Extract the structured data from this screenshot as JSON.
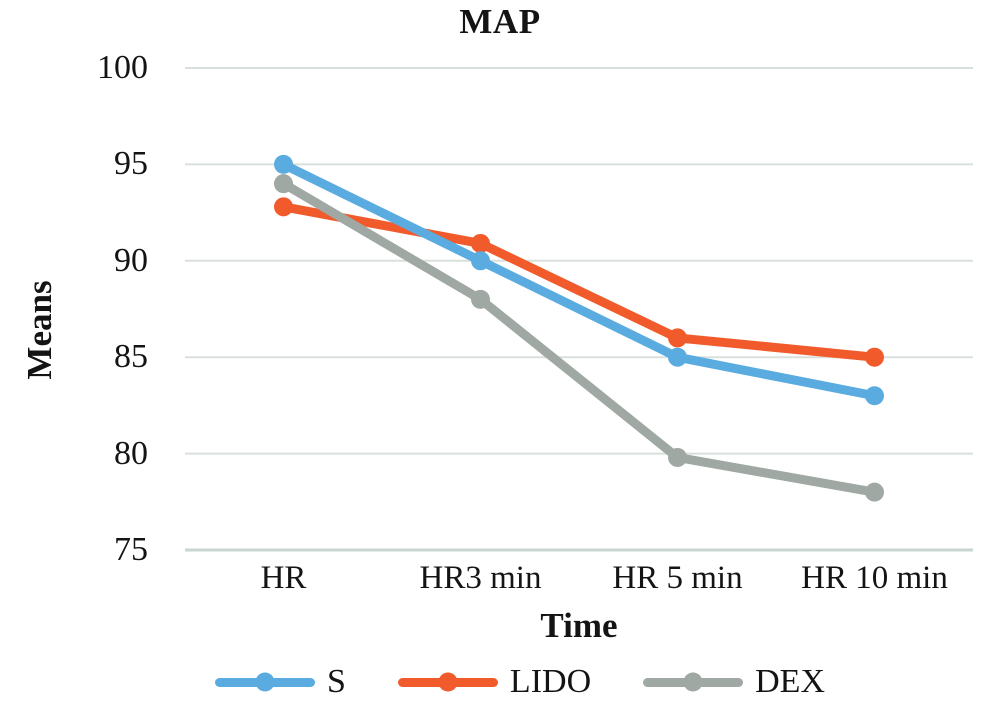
{
  "chart_data": {
    "type": "line",
    "title": "MAP",
    "xlabel": "Time",
    "ylabel": "Means",
    "categories": [
      "HR",
      "HR3 min",
      "HR 5 min",
      "HR 10 min"
    ],
    "yticks": [
      100,
      95,
      90,
      85,
      80,
      75
    ],
    "ylim": [
      75,
      100
    ],
    "grid": true,
    "legend_position": "bottom",
    "series": [
      {
        "name": "S",
        "color": "#5AACE0",
        "z": 3,
        "values": [
          95.0,
          90.0,
          85.0,
          83.0
        ]
      },
      {
        "name": "LIDO",
        "color": "#F15B2B",
        "z": 1,
        "values": [
          92.8,
          90.9,
          86.0,
          85.0
        ]
      },
      {
        "name": "DEX",
        "color": "#9FA8A3",
        "z": 2,
        "values": [
          94.0,
          88.0,
          79.8,
          78.0
        ]
      }
    ]
  },
  "colors": {
    "grid": "#D9E0DB",
    "grid_strong": "#C9D5CF",
    "text": "#141414",
    "background": "#FFFFFF"
  }
}
